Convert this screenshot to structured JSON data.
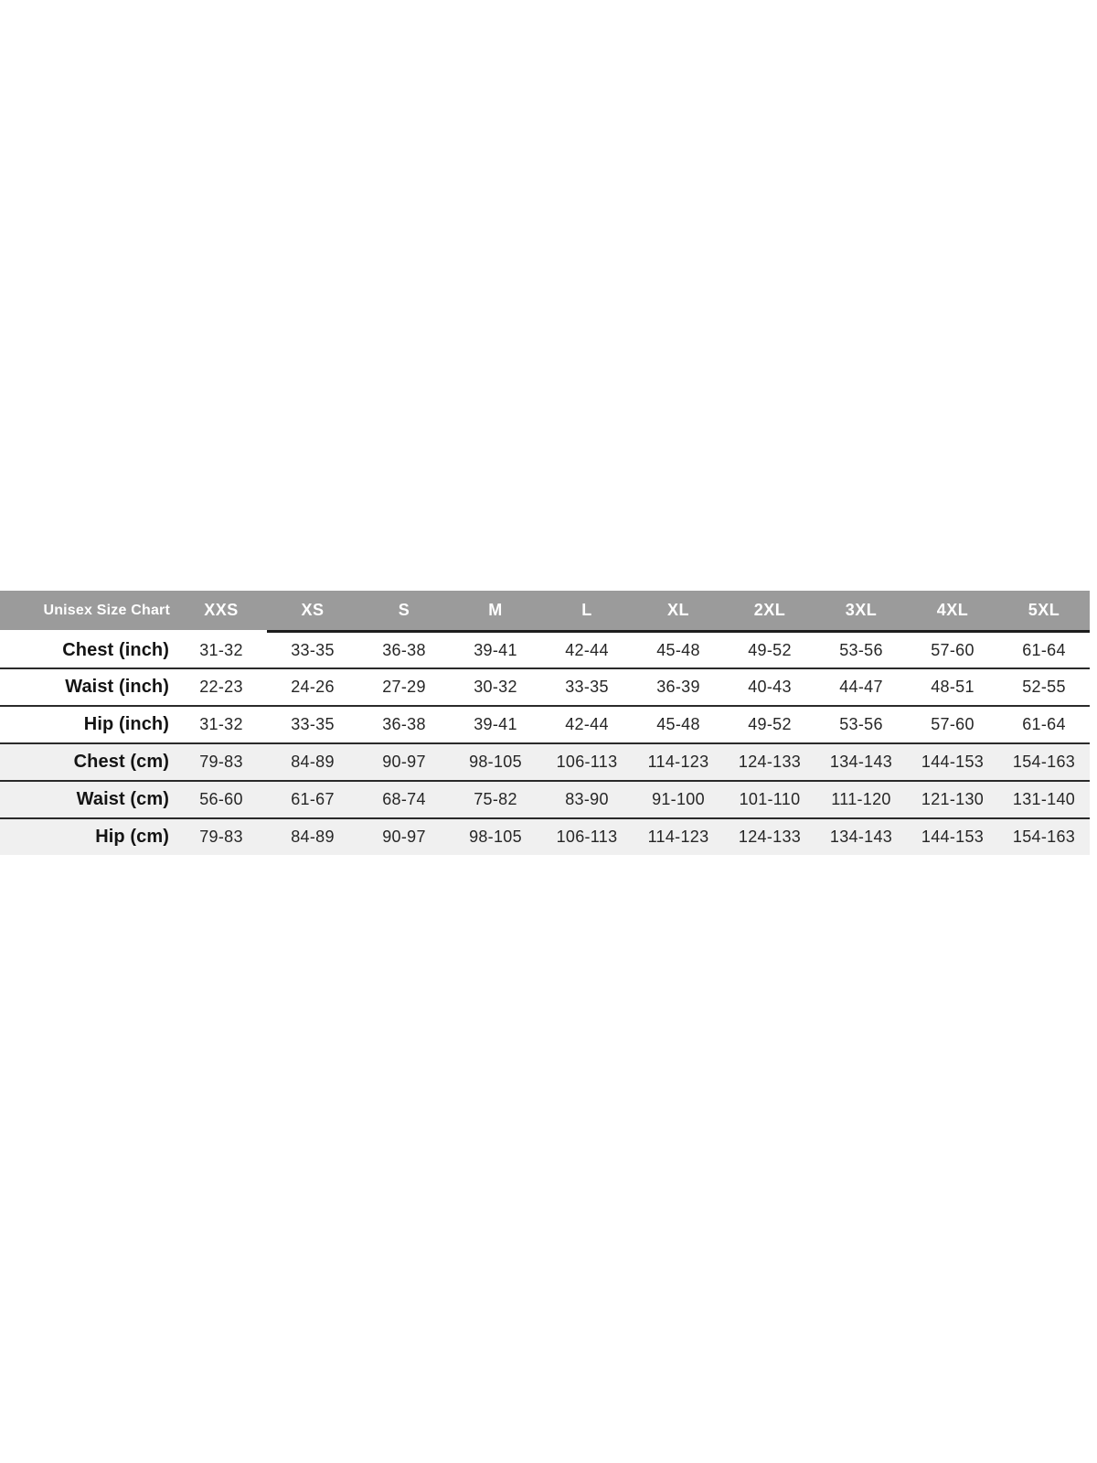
{
  "chart_data": {
    "type": "table",
    "title": "Unisex Size Chart",
    "header_label": "Unisex Size Chart",
    "columns": [
      "XXS",
      "XS",
      "S",
      "M",
      "L",
      "XL",
      "2XL",
      "3XL",
      "4XL",
      "5XL"
    ],
    "rows": [
      {
        "label": "Chest (inch)",
        "values": [
          "31-32",
          "33-35",
          "36-38",
          "39-41",
          "42-44",
          "45-48",
          "49-52",
          "53-56",
          "57-60",
          "61-64"
        ]
      },
      {
        "label": "Waist (inch)",
        "values": [
          "22-23",
          "24-26",
          "27-29",
          "30-32",
          "33-35",
          "36-39",
          "40-43",
          "44-47",
          "48-51",
          "52-55"
        ]
      },
      {
        "label": "Hip (inch)",
        "values": [
          "31-32",
          "33-35",
          "36-38",
          "39-41",
          "42-44",
          "45-48",
          "49-52",
          "53-56",
          "57-60",
          "61-64"
        ]
      },
      {
        "label": "Chest (cm)",
        "values": [
          "79-83",
          "84-89",
          "90-97",
          "98-105",
          "106-113",
          "114-123",
          "124-133",
          "134-143",
          "144-153",
          "154-163"
        ]
      },
      {
        "label": "Waist (cm)",
        "values": [
          "56-60",
          "61-67",
          "68-74",
          "75-82",
          "83-90",
          "91-100",
          "101-110",
          "111-120",
          "121-130",
          "131-140"
        ]
      },
      {
        "label": "Hip (cm)",
        "values": [
          "79-83",
          "84-89",
          "90-97",
          "98-105",
          "106-113",
          "114-123",
          "124-133",
          "134-143",
          "144-153",
          "154-163"
        ]
      }
    ],
    "layout_hints": {
      "stripe_rows": "cm rows (indexes 3-5) have light gray background",
      "header_underline": "thick dark line under header from XS column to right edge"
    }
  },
  "colors": {
    "header-bg": "#9b9b9b",
    "header-text": "#ffffff",
    "stripe-bg": "#f0f0f0",
    "line-color": "#2a2a2a",
    "label-text": "#141414",
    "value-text": "#262626"
  }
}
